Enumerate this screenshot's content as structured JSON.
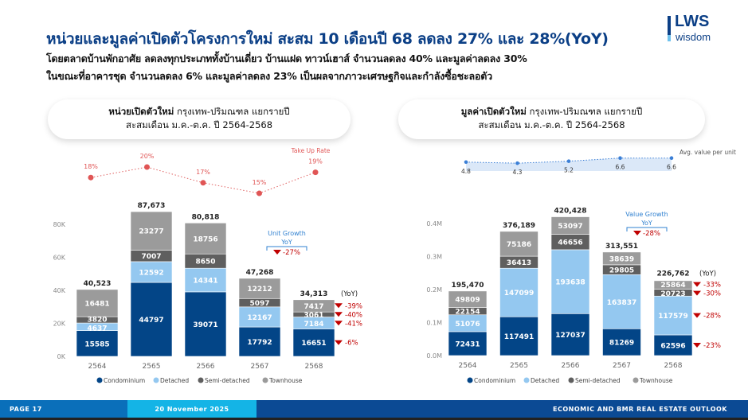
{
  "header": {
    "title": "หน่วยและมูลค่าเปิดตัวโครงการใหม่ สะสม 10 เดือนปี 68 ลดลง 27% และ 28%(YoY)",
    "subtitle_line1": "โดยตลาดบ้านพักอาศัย ลดลงทุกประเภททั้งบ้านเดี่ยว บ้านแฝด ทาวน์เฮาส์ จำนวนลดลง 40% และมูลค่าลดลง 30%",
    "subtitle_line2": "ในขณะที่อาคารชุด จำนวนลดลง 6% และมูลค่าลดลง 23% เป็นผลจากภาวะเศรษฐกิจและกำลังซื้อชะลอตัว",
    "logo_text": "LWS",
    "logo_sub": "wisdom"
  },
  "colors": {
    "condominium": "#034587",
    "detached": "#94c8f0",
    "semi_detached": "#5f5f5f",
    "townhouse": "#9b9b9b",
    "negative": "#c00000",
    "accent": "#2f80d0"
  },
  "chart_data": [
    {
      "type": "bar",
      "stacked": true,
      "title_bold": "หน่วยเปิดตัวใหม่",
      "title_rest": " กรุงเทพ-ปริมณฑล แยกรายปี",
      "title_line2": "สะสมเดือน ม.ค.-ต.ค. ปี 2564-2568",
      "categories": [
        "2564",
        "2565",
        "2566",
        "2567",
        "2568"
      ],
      "ylim": [
        0,
        80000
      ],
      "yticks": [
        0,
        20000,
        40000,
        60000,
        80000
      ],
      "ytick_labels": [
        "0K",
        "20K",
        "40K",
        "60K",
        "80K"
      ],
      "series": [
        {
          "name": "Condominium",
          "values": [
            15585,
            44797,
            39071,
            17792,
            16651
          ],
          "yoy": "-6%"
        },
        {
          "name": "Detached",
          "values": [
            4637,
            12592,
            14341,
            12167,
            7184
          ],
          "yoy": "-41%"
        },
        {
          "name": "Semi-detached",
          "values": [
            3820,
            7007,
            8650,
            5097,
            3061
          ],
          "yoy": "-40%"
        },
        {
          "name": "Townhouse",
          "values": [
            16481,
            23277,
            18756,
            12212,
            7417
          ],
          "yoy": "-39%"
        }
      ],
      "totals": [
        "40,523",
        "87,673",
        "80,818",
        "47,268",
        "34,313"
      ],
      "yoy_header": "(YoY)",
      "growth_title": "Unit Growth",
      "growth_sub": "YoY",
      "growth_value": "-27%",
      "line": {
        "name": "Take Up Rate",
        "values": [
          18,
          20,
          17,
          15,
          19
        ],
        "labels": [
          "18%",
          "20%",
          "17%",
          "15%",
          "19%"
        ]
      }
    },
    {
      "type": "bar",
      "stacked": true,
      "title_bold": "มูลค่าเปิดตัวใหม่",
      "title_rest": " กรุงเทพ-ปริมณฑล แยกรายปี",
      "title_line2": "สะสมเดือน ม.ค.-ต.ค. ปี 2564-2568",
      "categories": [
        "2564",
        "2565",
        "2566",
        "2567",
        "2568"
      ],
      "ylim": [
        0,
        400000
      ],
      "yticks": [
        0,
        100000,
        200000,
        300000,
        400000
      ],
      "ytick_labels": [
        "0.0M",
        "0.1M",
        "0.2M",
        "0.3M",
        "0.4M"
      ],
      "series": [
        {
          "name": "Condominium",
          "values": [
            72431,
            117491,
            127037,
            81269,
            62596
          ],
          "yoy": "-23%"
        },
        {
          "name": "Detached",
          "values": [
            51076,
            147099,
            193638,
            163837,
            117579
          ],
          "yoy": "-28%"
        },
        {
          "name": "Semi-detached",
          "values": [
            22154,
            36413,
            46656,
            29805,
            20723
          ],
          "yoy": "-30%"
        },
        {
          "name": "Townhouse",
          "values": [
            49809,
            75186,
            53097,
            38639,
            25864
          ],
          "yoy": "-33%"
        }
      ],
      "totals": [
        "195,470",
        "376,189",
        "420,428",
        "313,551",
        "226,762"
      ],
      "yoy_header": "(YoY)",
      "growth_title": "Value Growth",
      "growth_sub": "YoY",
      "growth_value": "-28%",
      "line": {
        "name": "Avg. value per unit",
        "values": [
          4.8,
          4.3,
          5.2,
          6.6,
          6.6
        ],
        "labels": [
          "4.8",
          "4.3",
          "5.2",
          "6.6",
          "6.6"
        ]
      }
    }
  ],
  "footer": {
    "page": "PAGE 17",
    "date": "20 November 2025",
    "outlook": "ECONOMIC AND BMR REAL ESTATE OUTLOOK"
  }
}
